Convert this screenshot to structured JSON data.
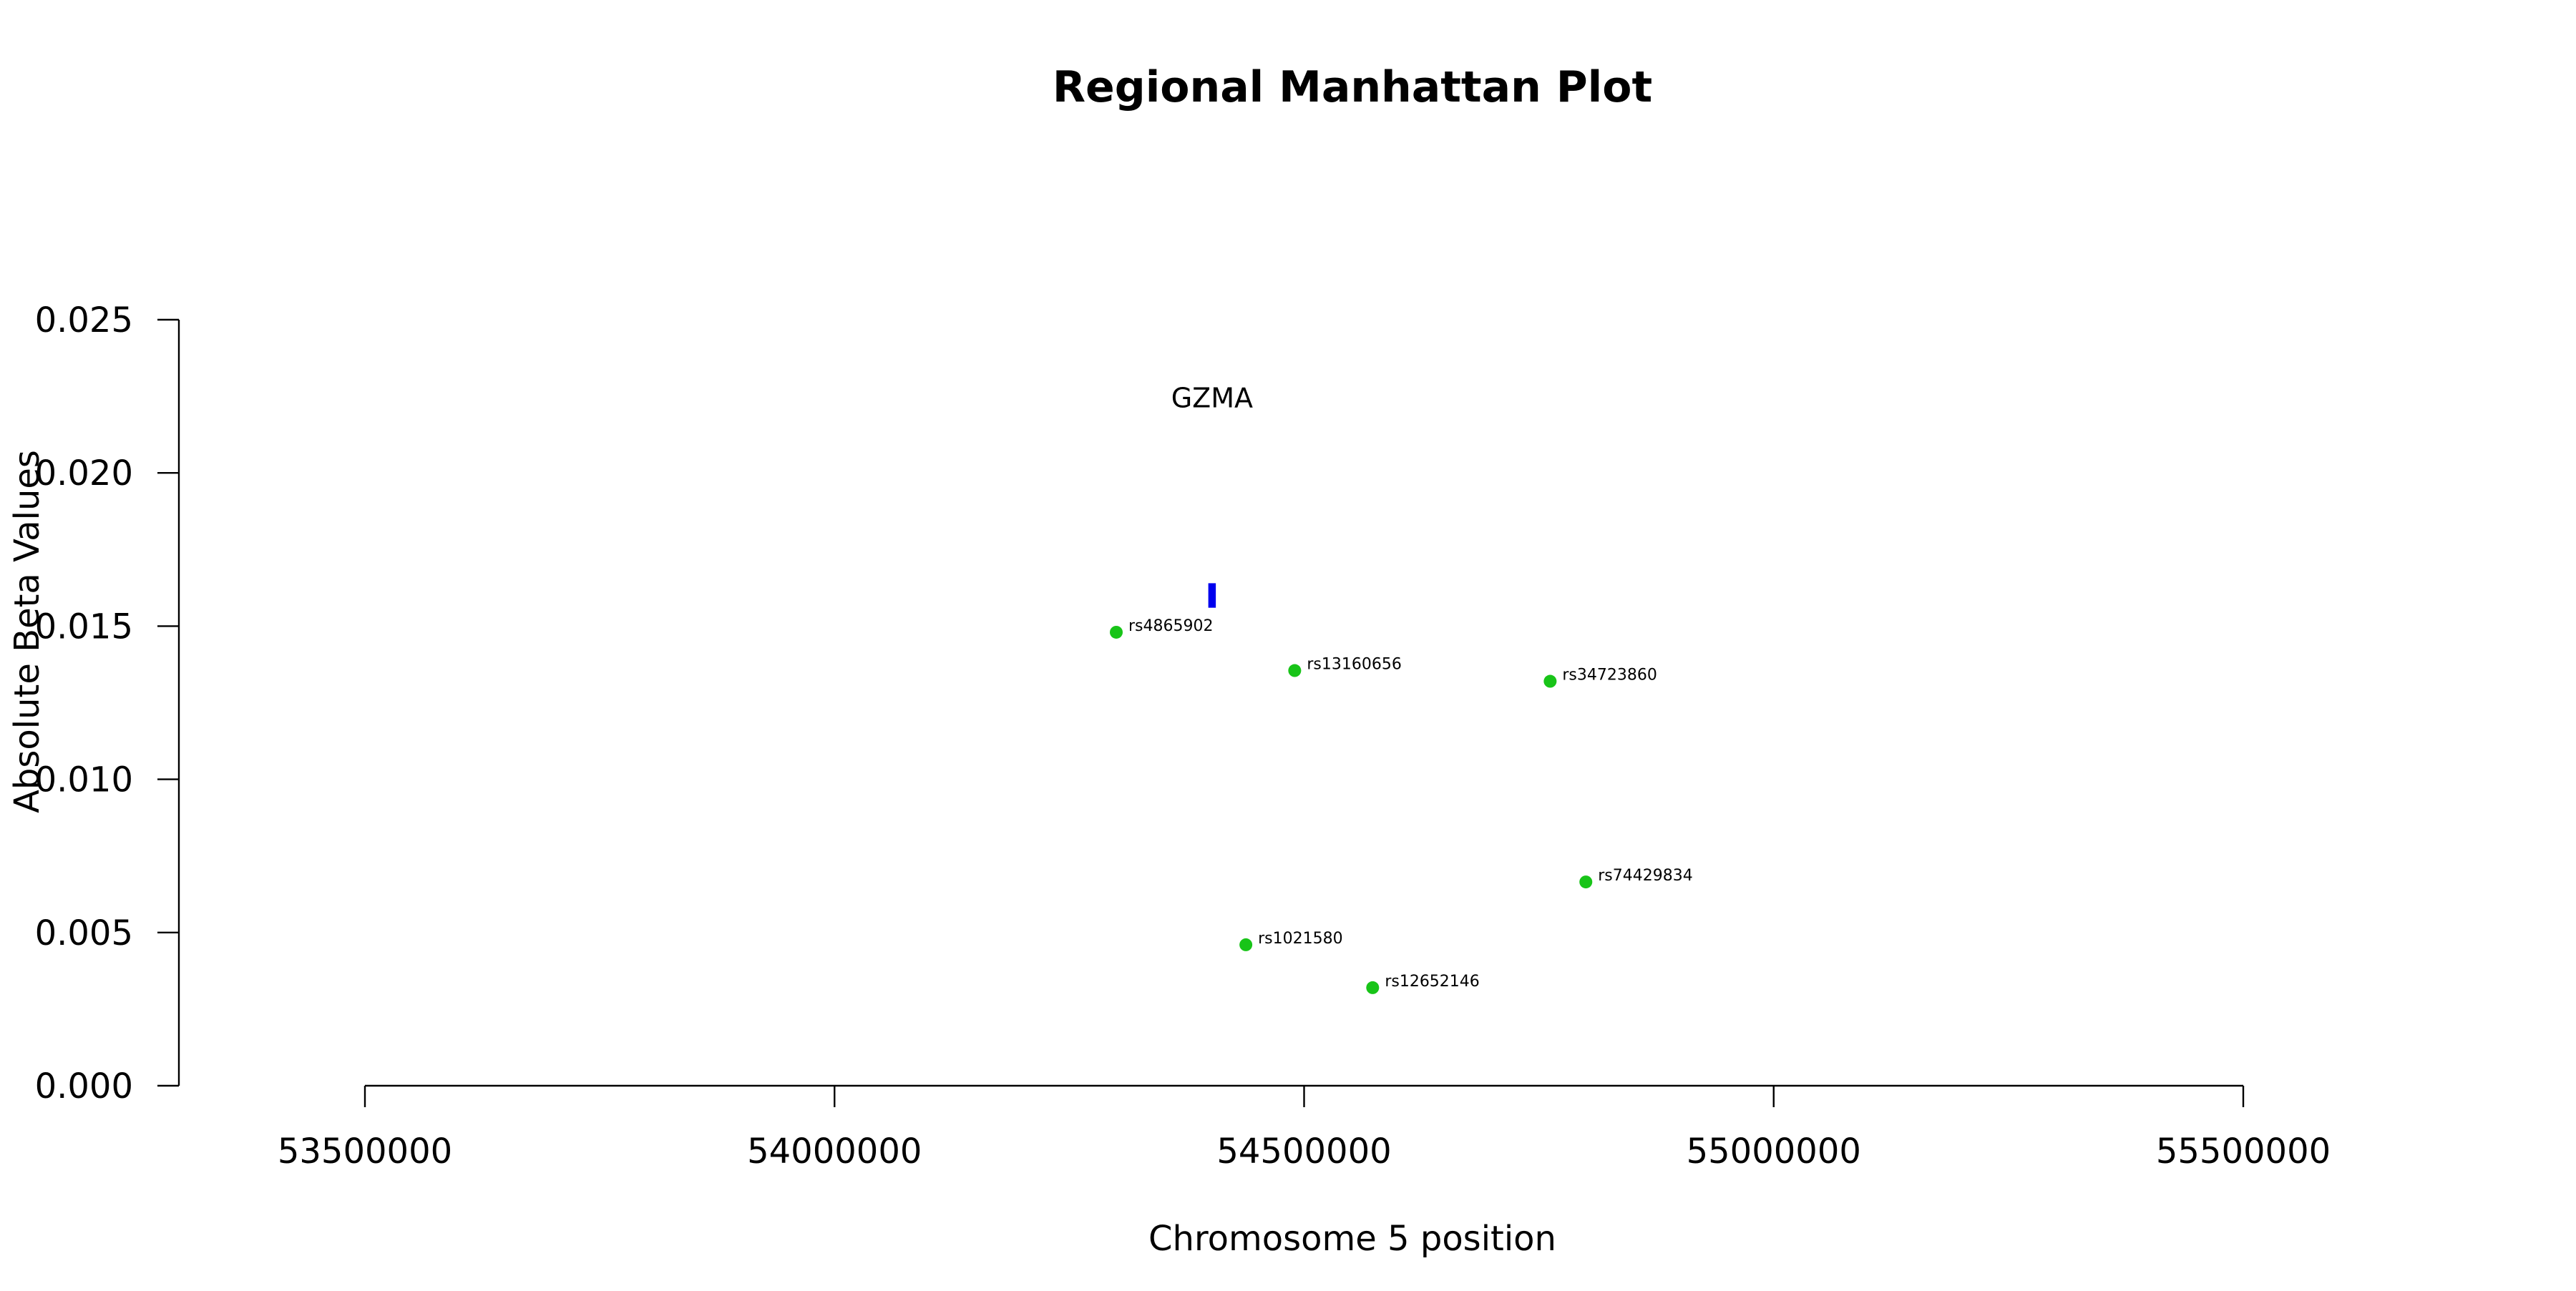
{
  "chart_data": {
    "type": "scatter",
    "title": "Regional Manhattan Plot",
    "xlabel": "Chromosome 5 position",
    "ylabel": "Absolute Beta Values",
    "xlim": [
      53500000,
      55500000
    ],
    "ylim": [
      0,
      0.025
    ],
    "x_ticks": [
      53500000,
      54000000,
      54500000,
      55000000,
      55500000
    ],
    "x_tick_labels": [
      "53500000",
      "54000000",
      "54500000",
      "55000000",
      "55500000"
    ],
    "y_ticks": [
      0,
      0.005,
      0.01,
      0.015,
      0.02,
      0.025
    ],
    "y_tick_labels": [
      "0.000",
      "0.005",
      "0.010",
      "0.015",
      "0.020",
      "0.025"
    ],
    "grid": false,
    "point_color": "#18c418",
    "gene_color": "#0000ee",
    "points": [
      {
        "label": "rs4865902",
        "x": 54300000,
        "y": 0.0148
      },
      {
        "label": "rs13160656",
        "x": 54490000,
        "y": 0.01355
      },
      {
        "label": "rs34723860",
        "x": 54762000,
        "y": 0.0132
      },
      {
        "label": "rs74429834",
        "x": 54800000,
        "y": 0.00665
      },
      {
        "label": "rs1021580",
        "x": 54438000,
        "y": 0.0046
      },
      {
        "label": "rs12652146",
        "x": 54573000,
        "y": 0.0032
      }
    ],
    "genes": [
      {
        "name": "GZMA",
        "start": 54398000,
        "end": 54406000,
        "y_low": 0.0156,
        "y_high": 0.0164
      }
    ]
  }
}
